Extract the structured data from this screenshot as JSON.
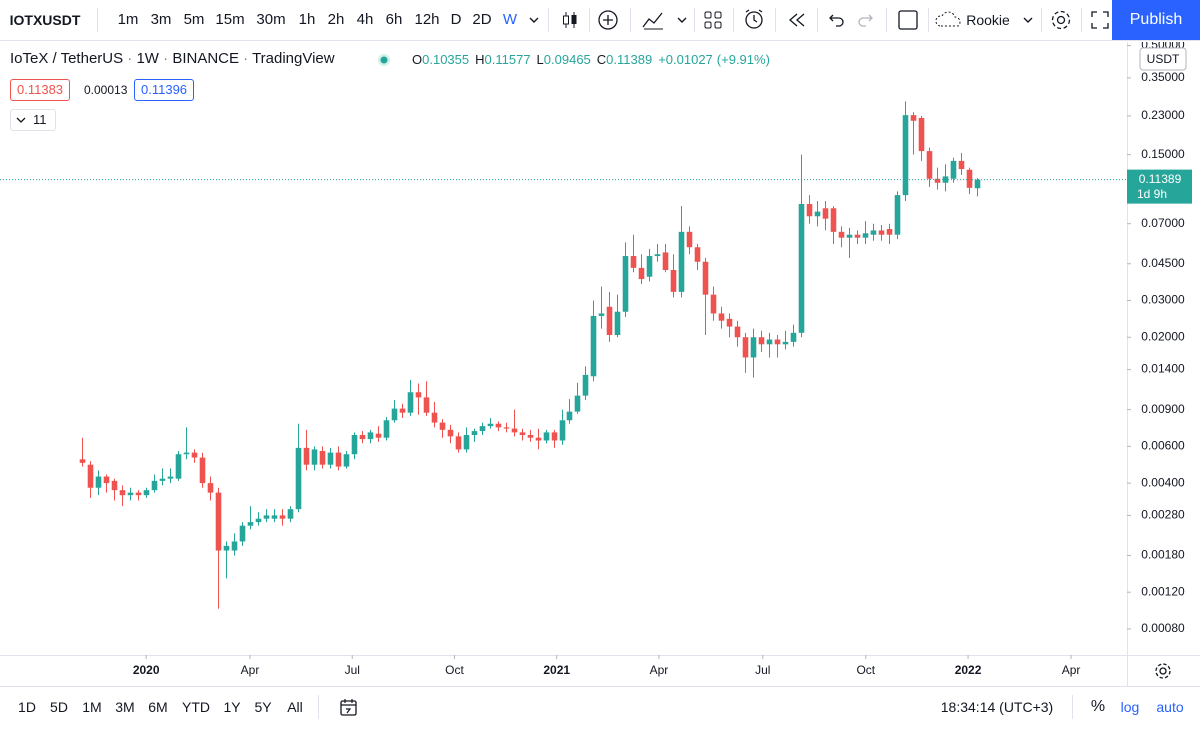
{
  "toolbar": {
    "symbol": "IOTXUSDT",
    "intervals": [
      "1m",
      "3m",
      "5m",
      "15m",
      "30m",
      "1h",
      "2h",
      "4h",
      "6h",
      "12h",
      "D",
      "2D",
      "W"
    ],
    "selected_interval": "W",
    "profile": "Rookie",
    "publish": "Publish"
  },
  "legend": {
    "description": "IoTeX / TetherUS",
    "interval": "1W",
    "exchange": "BINANCE",
    "source": "TradingView",
    "ohlc": [
      {
        "label": "O",
        "value": "0.10355"
      },
      {
        "label": "H",
        "value": "0.11577"
      },
      {
        "label": "L",
        "value": "0.09465"
      },
      {
        "label": "C",
        "value": "0.11389"
      }
    ],
    "change": "+0.01027",
    "change_percent": "(+9.91%)",
    "bid": "0.11383",
    "spread": "0.00013",
    "ask": "0.11396",
    "indicators": "11"
  },
  "chart_data": {
    "type": "candlestick",
    "up_color": "#26a69a",
    "down_color": "#ef5350",
    "log_scale": true,
    "grid": false,
    "currency": "USDT",
    "last_price": {
      "value": 0.11389,
      "label": "0.11389"
    },
    "countdown": "1d 9h",
    "ylim": [
      0.0006,
      0.52
    ],
    "yticks": [
      {
        "value": 0.5,
        "label": "0.50000"
      },
      {
        "value": 0.35,
        "label": "0.35000"
      },
      {
        "value": 0.23,
        "label": "0.23000"
      },
      {
        "value": 0.15,
        "label": "0.15000"
      },
      {
        "value": 0.07,
        "label": "0.07000"
      },
      {
        "value": 0.045,
        "label": "0.04500"
      },
      {
        "value": 0.03,
        "label": "0.03000"
      },
      {
        "value": 0.02,
        "label": "0.02000"
      },
      {
        "value": 0.014,
        "label": "0.01400"
      },
      {
        "value": 0.009,
        "label": "0.00900"
      },
      {
        "value": 0.006,
        "label": "0.00600"
      },
      {
        "value": 0.004,
        "label": "0.00400"
      },
      {
        "value": 0.0028,
        "label": "0.00280"
      },
      {
        "value": 0.0018,
        "label": "0.00180"
      },
      {
        "value": 0.0012,
        "label": "0.00120"
      },
      {
        "value": 0.0008,
        "label": "0.00080"
      }
    ],
    "xlim": [
      -10.3,
      130.8
    ],
    "xticks": [
      {
        "value": 8.0,
        "label": "2020"
      },
      {
        "value": 21.0,
        "label": "Apr"
      },
      {
        "value": 33.8,
        "label": "Jul"
      },
      {
        "value": 46.6,
        "label": "Oct"
      },
      {
        "value": 59.4,
        "label": "2021"
      },
      {
        "value": 72.2,
        "label": "Apr"
      },
      {
        "value": 85.2,
        "label": "Jul"
      },
      {
        "value": 98.1,
        "label": "Oct"
      },
      {
        "value": 110.9,
        "label": "2022"
      },
      {
        "value": 123.8,
        "label": "Apr"
      }
    ],
    "candles": [
      [
        0.0052,
        0.0066,
        0.0048,
        0.005
      ],
      [
        0.0049,
        0.0051,
        0.0034,
        0.0038
      ],
      [
        0.0038,
        0.0046,
        0.0035,
        0.0043
      ],
      [
        0.0043,
        0.0044,
        0.0036,
        0.004
      ],
      [
        0.0041,
        0.0042,
        0.0033,
        0.0037
      ],
      [
        0.0037,
        0.0039,
        0.0031,
        0.0035
      ],
      [
        0.0035,
        0.0038,
        0.0033,
        0.0036
      ],
      [
        0.0036,
        0.0037,
        0.0033,
        0.0035
      ],
      [
        0.0035,
        0.0038,
        0.0034,
        0.0037
      ],
      [
        0.0037,
        0.0044,
        0.0036,
        0.0041
      ],
      [
        0.0041,
        0.0047,
        0.0039,
        0.0042
      ],
      [
        0.0042,
        0.0047,
        0.004,
        0.0043
      ],
      [
        0.0042,
        0.0057,
        0.0041,
        0.0055
      ],
      [
        0.0055,
        0.0074,
        0.0052,
        0.0056
      ],
      [
        0.0056,
        0.0058,
        0.005,
        0.0053
      ],
      [
        0.0053,
        0.0056,
        0.0038,
        0.004
      ],
      [
        0.004,
        0.0043,
        0.0033,
        0.0036
      ],
      [
        0.0036,
        0.0038,
        0.001,
        0.0019
      ],
      [
        0.0019,
        0.0021,
        0.0014,
        0.002
      ],
      [
        0.0019,
        0.0023,
        0.0018,
        0.0021
      ],
      [
        0.0021,
        0.0026,
        0.002,
        0.0025
      ],
      [
        0.0025,
        0.0031,
        0.0024,
        0.0026
      ],
      [
        0.0026,
        0.0029,
        0.0025,
        0.0027
      ],
      [
        0.0027,
        0.003,
        0.0026,
        0.0028
      ],
      [
        0.0027,
        0.003,
        0.0026,
        0.0028
      ],
      [
        0.0028,
        0.003,
        0.0025,
        0.0027
      ],
      [
        0.0027,
        0.0031,
        0.0026,
        0.003
      ],
      [
        0.003,
        0.0077,
        0.0029,
        0.0059
      ],
      [
        0.0059,
        0.0072,
        0.0046,
        0.0049
      ],
      [
        0.0049,
        0.006,
        0.0046,
        0.0058
      ],
      [
        0.0057,
        0.006,
        0.0047,
        0.0049
      ],
      [
        0.0049,
        0.0059,
        0.0047,
        0.0056
      ],
      [
        0.0056,
        0.006,
        0.0046,
        0.0048
      ],
      [
        0.0048,
        0.0057,
        0.0047,
        0.0055
      ],
      [
        0.0055,
        0.007,
        0.0052,
        0.0068
      ],
      [
        0.0068,
        0.0071,
        0.0062,
        0.0065
      ],
      [
        0.0065,
        0.0072,
        0.0062,
        0.007
      ],
      [
        0.0069,
        0.0075,
        0.0063,
        0.0066
      ],
      [
        0.0066,
        0.0083,
        0.0064,
        0.008
      ],
      [
        0.008,
        0.01,
        0.0078,
        0.0091
      ],
      [
        0.0091,
        0.0096,
        0.0082,
        0.0087
      ],
      [
        0.0087,
        0.0125,
        0.0084,
        0.0109
      ],
      [
        0.0109,
        0.012,
        0.0085,
        0.0103
      ],
      [
        0.0103,
        0.0123,
        0.0084,
        0.0087
      ],
      [
        0.0087,
        0.0098,
        0.0074,
        0.0078
      ],
      [
        0.0078,
        0.0081,
        0.0066,
        0.0072
      ],
      [
        0.0072,
        0.0076,
        0.0062,
        0.0067
      ],
      [
        0.0067,
        0.007,
        0.0056,
        0.0058
      ],
      [
        0.0058,
        0.0074,
        0.0056,
        0.0068
      ],
      [
        0.0068,
        0.0073,
        0.0063,
        0.0071
      ],
      [
        0.0071,
        0.0078,
        0.0068,
        0.0075
      ],
      [
        0.0075,
        0.0082,
        0.0073,
        0.0077
      ],
      [
        0.0077,
        0.0079,
        0.0071,
        0.0074
      ],
      [
        0.0074,
        0.0078,
        0.007,
        0.0073
      ],
      [
        0.0073,
        0.009,
        0.0067,
        0.007
      ],
      [
        0.007,
        0.0073,
        0.0064,
        0.0068
      ],
      [
        0.0068,
        0.0072,
        0.0063,
        0.0066
      ],
      [
        0.0066,
        0.0073,
        0.0058,
        0.0064
      ],
      [
        0.0064,
        0.0072,
        0.0062,
        0.007
      ],
      [
        0.007,
        0.0072,
        0.0059,
        0.0064
      ],
      [
        0.0064,
        0.009,
        0.0061,
        0.008
      ],
      [
        0.008,
        0.0101,
        0.0077,
        0.0088
      ],
      [
        0.0088,
        0.0121,
        0.0086,
        0.0105
      ],
      [
        0.0105,
        0.0145,
        0.01,
        0.0132
      ],
      [
        0.013,
        0.03,
        0.0123,
        0.0253
      ],
      [
        0.0253,
        0.035,
        0.022,
        0.026
      ],
      [
        0.028,
        0.033,
        0.019,
        0.0205
      ],
      [
        0.0205,
        0.032,
        0.02,
        0.0265
      ],
      [
        0.0265,
        0.057,
        0.025,
        0.049
      ],
      [
        0.049,
        0.062,
        0.041,
        0.043
      ],
      [
        0.043,
        0.05,
        0.036,
        0.038
      ],
      [
        0.039,
        0.053,
        0.037,
        0.049
      ],
      [
        0.049,
        0.056,
        0.046,
        0.05
      ],
      [
        0.051,
        0.056,
        0.041,
        0.042
      ],
      [
        0.042,
        0.05,
        0.031,
        0.033
      ],
      [
        0.033,
        0.085,
        0.031,
        0.064
      ],
      [
        0.064,
        0.068,
        0.05,
        0.054
      ],
      [
        0.054,
        0.056,
        0.042,
        0.046
      ],
      [
        0.046,
        0.048,
        0.0205,
        0.032
      ],
      [
        0.032,
        0.035,
        0.024,
        0.026
      ],
      [
        0.026,
        0.028,
        0.022,
        0.024
      ],
      [
        0.0245,
        0.026,
        0.02,
        0.0225
      ],
      [
        0.0225,
        0.024,
        0.018,
        0.02
      ],
      [
        0.02,
        0.021,
        0.0135,
        0.016
      ],
      [
        0.016,
        0.022,
        0.0128,
        0.02
      ],
      [
        0.02,
        0.0215,
        0.017,
        0.0185
      ],
      [
        0.0185,
        0.021,
        0.016,
        0.0195
      ],
      [
        0.0195,
        0.0205,
        0.016,
        0.0185
      ],
      [
        0.0185,
        0.0215,
        0.0175,
        0.019
      ],
      [
        0.019,
        0.023,
        0.018,
        0.021
      ],
      [
        0.021,
        0.15,
        0.02,
        0.087
      ],
      [
        0.087,
        0.096,
        0.07,
        0.076
      ],
      [
        0.076,
        0.09,
        0.068,
        0.08
      ],
      [
        0.083,
        0.09,
        0.065,
        0.074
      ],
      [
        0.083,
        0.085,
        0.056,
        0.064
      ],
      [
        0.064,
        0.068,
        0.054,
        0.06
      ],
      [
        0.06,
        0.067,
        0.048,
        0.062
      ],
      [
        0.062,
        0.065,
        0.056,
        0.06
      ],
      [
        0.06,
        0.072,
        0.056,
        0.063
      ],
      [
        0.062,
        0.07,
        0.058,
        0.065
      ],
      [
        0.065,
        0.069,
        0.058,
        0.062
      ],
      [
        0.066,
        0.07,
        0.056,
        0.062
      ],
      [
        0.062,
        0.1,
        0.059,
        0.096
      ],
      [
        0.096,
        0.27,
        0.09,
        0.232
      ],
      [
        0.232,
        0.24,
        0.15,
        0.218
      ],
      [
        0.225,
        0.23,
        0.14,
        0.156
      ],
      [
        0.156,
        0.162,
        0.105,
        0.115
      ],
      [
        0.115,
        0.13,
        0.102,
        0.11
      ],
      [
        0.11,
        0.135,
        0.1,
        0.118
      ],
      [
        0.115,
        0.145,
        0.11,
        0.14
      ],
      [
        0.14,
        0.153,
        0.12,
        0.128
      ],
      [
        0.127,
        0.13,
        0.097,
        0.104
      ],
      [
        0.10355,
        0.11577,
        0.09465,
        0.11389
      ]
    ]
  },
  "bottom_bar": {
    "ranges": [
      "1D",
      "5D",
      "1M",
      "3M",
      "6M",
      "YTD",
      "1Y",
      "5Y",
      "All"
    ],
    "time": "18:34:14 (UTC+3)",
    "percent": "%",
    "log": "log",
    "auto": "auto"
  }
}
